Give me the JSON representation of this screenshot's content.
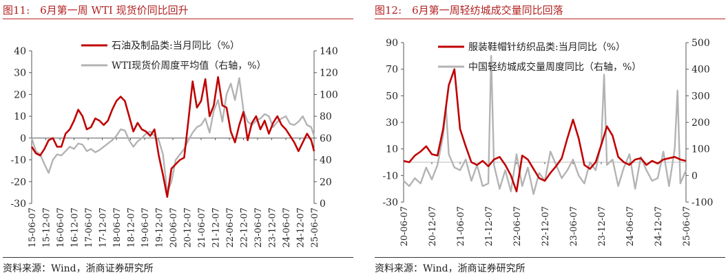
{
  "left_panel": {
    "title": "图11:　6月第一周 WTI 现货价同比回升",
    "source": "资料来源：Wind，浙商证券研究所"
  },
  "right_panel": {
    "title": "图12:　6月第一周轻纺城成交量同比回落",
    "source": "资料来源：Wind，浙商证券研究所"
  },
  "colors": {
    "primary": "#c00000",
    "secondary": "#b3b3b3",
    "title": "#b22222"
  },
  "chart_data": [
    {
      "type": "line",
      "title": "6月第一周 WTI 现货价同比回升",
      "x_tick_labels": [
        "15-06-07",
        "15-12-07",
        "16-06-07",
        "16-12-07",
        "17-06-07",
        "17-12-07",
        "18-06-07",
        "18-12-07",
        "19-06-07",
        "19-12-07",
        "20-06-07",
        "20-12-07",
        "21-06-07",
        "21-12-07",
        "22-06-07",
        "22-12-07",
        "23-06-07",
        "23-12-07",
        "24-06-07",
        "24-12-07",
        "25-06-07"
      ],
      "ylim_left": [
        -30,
        40
      ],
      "y_ticks_left": [
        "40",
        "30",
        "20",
        "10",
        "0",
        "-10",
        "-20",
        "-30"
      ],
      "ylim_right": [
        0,
        140
      ],
      "y_ticks_right": [
        "140",
        "120",
        "100",
        "80",
        "60",
        "40",
        "20",
        "0"
      ],
      "series": [
        {
          "name": "石油及制品类:当月同比（%）",
          "axis": "left",
          "color": "#c00000",
          "x": [
            0,
            0.3,
            0.6,
            0.9,
            1.2,
            1.5,
            1.8,
            2.1,
            2.4,
            2.7,
            3,
            3.3,
            3.6,
            3.9,
            4.2,
            4.5,
            4.8,
            5.1,
            5.4,
            5.7,
            6,
            6.3,
            6.6,
            6.9,
            7.2,
            7.5,
            7.8,
            8.1,
            8.4,
            8.7,
            9,
            9.3,
            9.6,
            9.9,
            10.2,
            10.5,
            10.8,
            11.1,
            11.4,
            11.7,
            12,
            12.3,
            12.6,
            12.9,
            13.2,
            13.5,
            13.8,
            14.1,
            14.4,
            14.7,
            15,
            15.3,
            15.6,
            15.9,
            16.2,
            16.5,
            16.8,
            17.1,
            17.4,
            17.7,
            18,
            18.3,
            18.6,
            18.9,
            19.2,
            19.5,
            19.8,
            20
          ],
          "values": [
            -4,
            -7,
            -8,
            -5,
            -1,
            0,
            -4,
            -4,
            2,
            4,
            8,
            13,
            10,
            4,
            5,
            9,
            8,
            6,
            8,
            13,
            17,
            19,
            17,
            10,
            3,
            7,
            4,
            3,
            1,
            4,
            -8,
            -17,
            -27,
            -14,
            -12,
            -10,
            -9,
            8,
            26,
            14,
            17,
            27,
            10,
            15,
            28,
            15,
            14,
            3,
            -2,
            6,
            12,
            -1,
            7,
            10,
            4,
            8,
            2,
            7,
            10,
            6,
            4,
            1,
            -2,
            -6,
            -2,
            2,
            -1,
            -6
          ]
        },
        {
          "name": "WTI现货价周度平均值（右轴，%）",
          "axis": "right",
          "color": "#b3b3b3",
          "x": [
            0,
            0.3,
            0.6,
            0.9,
            1.2,
            1.5,
            1.8,
            2.1,
            2.4,
            2.7,
            3,
            3.3,
            3.6,
            3.9,
            4.2,
            4.5,
            4.8,
            5.1,
            5.4,
            5.7,
            6,
            6.3,
            6.6,
            6.9,
            7.2,
            7.5,
            7.8,
            8.1,
            8.4,
            8.7,
            9,
            9.3,
            9.6,
            9.9,
            10.2,
            10.5,
            10.8,
            11.1,
            11.4,
            11.7,
            12,
            12.3,
            12.6,
            12.9,
            13.2,
            13.5,
            13.8,
            14.1,
            14.4,
            14.7,
            15,
            15.3,
            15.6,
            15.9,
            16.2,
            16.5,
            16.8,
            17.1,
            17.4,
            17.7,
            18,
            18.3,
            18.6,
            18.9,
            19.2,
            19.5,
            19.8,
            20
          ],
          "values": [
            60,
            48,
            45,
            36,
            28,
            40,
            45,
            44,
            48,
            52,
            50,
            55,
            54,
            48,
            50,
            47,
            49,
            52,
            55,
            58,
            62,
            68,
            67,
            58,
            52,
            57,
            60,
            64,
            66,
            62,
            58,
            45,
            10,
            20,
            40,
            45,
            50,
            58,
            65,
            70,
            72,
            78,
            65,
            85,
            95,
            75,
            100,
            110,
            95,
            115,
            85,
            75,
            72,
            76,
            78,
            82,
            80,
            70,
            75,
            78,
            80,
            73,
            72,
            75,
            80,
            72,
            70,
            62
          ]
        }
      ]
    },
    {
      "type": "line",
      "title": "6月第一周轻纺城成交量同比回落",
      "x_tick_labels": [
        "20-06-07",
        "20-12-07",
        "21-06-07",
        "21-12-07",
        "22-06-07",
        "22-12-07",
        "23-06-07",
        "23-12-07",
        "24-06-07",
        "24-12-07",
        "25-06-07"
      ],
      "ylim_left": [
        -30,
        90
      ],
      "y_ticks_left": [
        "90",
        "70",
        "50",
        "30",
        "10",
        "-10",
        "-30"
      ],
      "ylim_right": [
        -100,
        500
      ],
      "y_ticks_right": [
        "500",
        "400",
        "300",
        "200",
        "100",
        "0",
        "-100"
      ],
      "series": [
        {
          "name": "服装鞋帽针纺织品类:当月同比（%）",
          "axis": "left",
          "color": "#c00000",
          "x": [
            0,
            0.2,
            0.4,
            0.6,
            0.8,
            1,
            1.2,
            1.4,
            1.6,
            1.8,
            2,
            2.2,
            2.4,
            2.6,
            2.8,
            3,
            3.2,
            3.4,
            3.6,
            3.8,
            4,
            4.2,
            4.4,
            4.6,
            4.8,
            5,
            5.2,
            5.4,
            5.6,
            5.8,
            6,
            6.2,
            6.4,
            6.6,
            6.8,
            7,
            7.2,
            7.4,
            7.6,
            7.8,
            8,
            8.2,
            8.4,
            8.6,
            8.8,
            9,
            9.2,
            9.4,
            9.6,
            9.8,
            10
          ],
          "values": [
            1,
            0,
            5,
            8,
            12,
            6,
            5,
            25,
            58,
            70,
            25,
            12,
            0,
            -2,
            1,
            -3,
            2,
            4,
            -2,
            -10,
            -22,
            5,
            2,
            -5,
            -12,
            -14,
            -8,
            -3,
            3,
            18,
            32,
            18,
            -2,
            -5,
            0,
            13,
            27,
            20,
            4,
            0,
            -2,
            2,
            3,
            -2,
            1,
            -1,
            2,
            3,
            4,
            2,
            1
          ]
        },
        {
          "name": "中国轻纺城成交量周度同比（右轴，%）",
          "axis": "right",
          "color": "#b3b3b3",
          "x": [
            0,
            0.2,
            0.4,
            0.6,
            0.8,
            1,
            1.2,
            1.4,
            1.5,
            1.6,
            1.8,
            2,
            2.2,
            2.4,
            2.6,
            2.8,
            3,
            3.1,
            3.2,
            3.4,
            3.6,
            3.8,
            4,
            4.2,
            4.4,
            4.6,
            4.8,
            5,
            5.2,
            5.4,
            5.6,
            5.8,
            6,
            6.2,
            6.4,
            6.6,
            6.8,
            7,
            7.1,
            7.2,
            7.4,
            7.6,
            7.8,
            8,
            8.2,
            8.4,
            8.6,
            8.8,
            9,
            9.2,
            9.4,
            9.6,
            9.7,
            9.8,
            10
          ],
          "values": [
            -20,
            -40,
            -10,
            -30,
            30,
            -15,
            40,
            150,
            260,
            80,
            30,
            20,
            60,
            -20,
            40,
            -40,
            -30,
            450,
            40,
            -50,
            20,
            -60,
            80,
            -40,
            30,
            -70,
            10,
            -20,
            90,
            40,
            -10,
            20,
            60,
            0,
            -30,
            50,
            20,
            120,
            380,
            40,
            60,
            -40,
            30,
            80,
            -50,
            70,
            20,
            -20,
            -10,
            90,
            -40,
            100,
            320,
            -30,
            20
          ]
        }
      ]
    }
  ]
}
